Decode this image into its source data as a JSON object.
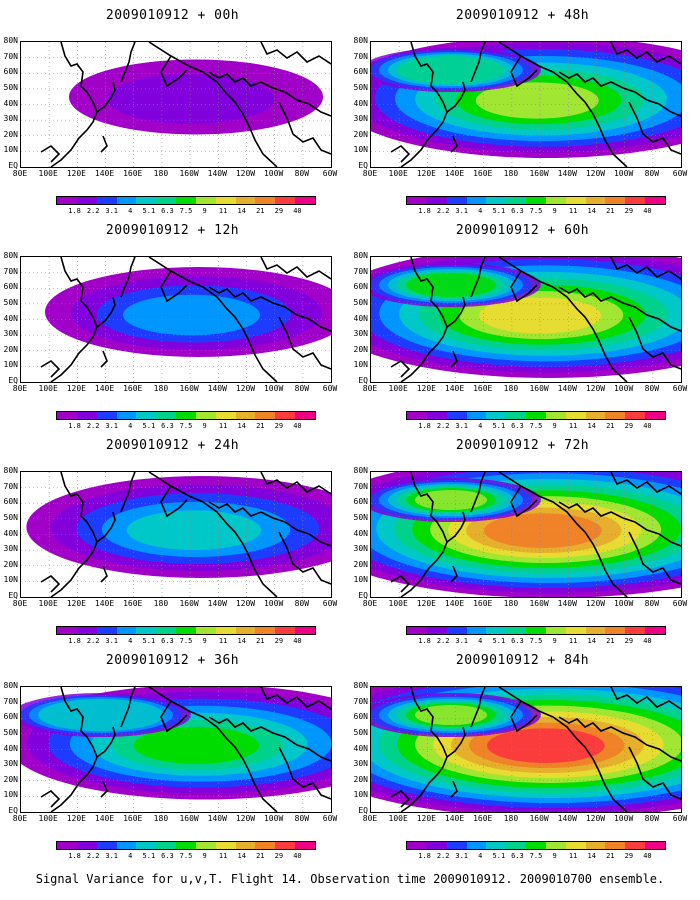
{
  "figure": {
    "caption": "Signal Variance for u,v,T. Flight 14. Observation time 2009010912. 2009010700 ensemble.",
    "panels": [
      {
        "title": "2009010912 + 00h",
        "intensity": 0.15
      },
      {
        "title": "2009010912 + 12h",
        "intensity": 0.3
      },
      {
        "title": "2009010912 + 24h",
        "intensity": 0.42
      },
      {
        "title": "2009010912 + 36h",
        "intensity": 0.55
      },
      {
        "title": "2009010912 + 48h",
        "intensity": 0.62
      },
      {
        "title": "2009010912 + 60h",
        "intensity": 0.72
      },
      {
        "title": "2009010912 + 72h",
        "intensity": 0.82
      },
      {
        "title": "2009010912 + 84h",
        "intensity": 0.92
      }
    ],
    "lat_labels": [
      "80N",
      "70N",
      "60N",
      "50N",
      "40N",
      "30N",
      "20N",
      "10N",
      "EQ"
    ],
    "lon_labels": [
      "80E",
      "100E",
      "120E",
      "140E",
      "160E",
      "180",
      "160W",
      "140W",
      "120W",
      "100W",
      "80W",
      "60W"
    ],
    "colorbar": {
      "labels": [
        "1.8",
        "2.2",
        "3.1",
        "4",
        "5.1",
        "6.3",
        "7.5",
        "9",
        "11",
        "14",
        "21",
        "29",
        "40"
      ],
      "colors": [
        "#a000c8",
        "#8200dc",
        "#1e3cff",
        "#0096ff",
        "#00c8c8",
        "#00d28c",
        "#00dc00",
        "#a0e632",
        "#e6dc32",
        "#e6af2d",
        "#f08228",
        "#fa3c3c",
        "#f00082"
      ]
    }
  }
}
